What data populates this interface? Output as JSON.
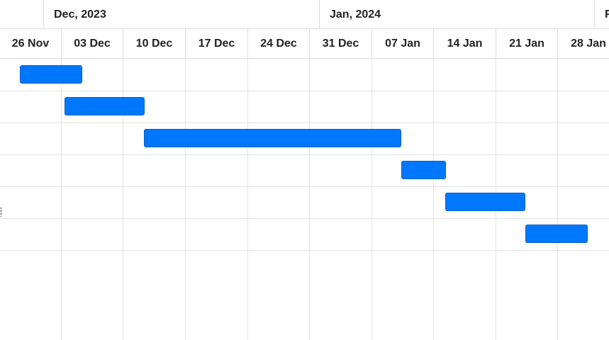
{
  "timeline": {
    "months": [
      {
        "label": "Dec, 2023"
      },
      {
        "label": "Jan, 2024"
      },
      {
        "label": "F"
      }
    ],
    "weeks": [
      {
        "label": "26 Nov"
      },
      {
        "label": "03 Dec"
      },
      {
        "label": "10 Dec"
      },
      {
        "label": "17 Dec"
      },
      {
        "label": "24 Dec"
      },
      {
        "label": "31 Dec"
      },
      {
        "label": "07 Jan"
      },
      {
        "label": "14 Jan"
      },
      {
        "label": "21 Jan"
      },
      {
        "label": "28 Jan"
      }
    ],
    "start_date": "2023-11-26",
    "day_width": 12.5
  },
  "tasks": [
    {
      "start": "2023-11-28",
      "end": "2023-12-05"
    },
    {
      "start": "2023-12-03",
      "end": "2023-12-12"
    },
    {
      "start": "2023-12-12",
      "end": "2024-01-10"
    },
    {
      "start": "2024-01-10",
      "end": "2024-01-15"
    },
    {
      "start": "2024-01-15",
      "end": "2024-01-24"
    },
    {
      "start": "2024-01-24",
      "end": "2024-01-31"
    }
  ],
  "row_count": 6,
  "colors": {
    "task_fill": "#0077ff",
    "task_border": "#0a5fc2",
    "grid_line": "#e3e3e3",
    "header_text": "#222222"
  }
}
